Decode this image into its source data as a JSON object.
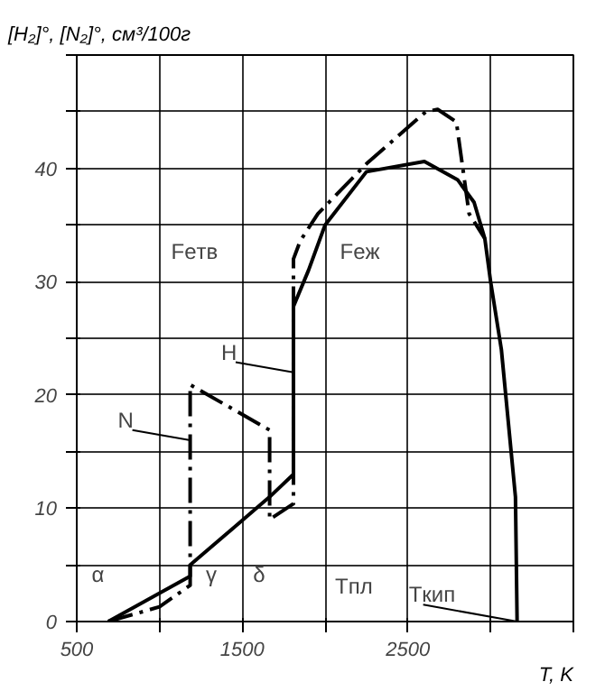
{
  "chart_data": {
    "type": "line",
    "xlabel": "T, K",
    "ylabel": "[H₂]°, [N₂]°, см³/100г",
    "xlim": [
      500,
      3500
    ],
    "ylim": [
      0,
      50
    ],
    "xticks": [
      500,
      {
        "value": 1000,
        "label": null
      },
      1500,
      {
        "value": 2000,
        "label": null
      },
      2500,
      {
        "value": 3000,
        "label": null
      },
      {
        "value": 3500,
        "label": null
      }
    ],
    "yticks": [
      0,
      {
        "value": 5,
        "label": null
      },
      10,
      {
        "value": 15,
        "label": null
      },
      20,
      {
        "value": 25,
        "label": null
      },
      30,
      {
        "value": 35,
        "label": null
      },
      40,
      {
        "value": 45,
        "label": null
      },
      {
        "value": 50,
        "label": null
      }
    ],
    "grid": true,
    "series": [
      {
        "color": "#000000",
        "line_style": "solid",
        "x": [
          690,
          1185,
          1185,
          1665,
          1809,
          1809,
          1900,
          2000,
          2250,
          2600,
          2800,
          2900,
          2965,
          3000,
          3065,
          3150,
          3160
        ],
        "values": [
          0,
          4,
          5,
          11,
          13,
          27.8,
          31,
          35,
          39.7,
          40.6,
          39,
          37,
          33.8,
          30,
          24,
          11,
          0
        ]
      },
      {
        "color": "#000000",
        "line_style": "dashed",
        "x": [
          690,
          1000,
          1185,
          1185,
          1665,
          1665,
          1809,
          1809,
          1850,
          1957,
          2250,
          2609,
          2680,
          2793,
          2870,
          2965
        ],
        "values": [
          0,
          1.3,
          3.2,
          20.9,
          16.9,
          9.0,
          10.4,
          32,
          33.6,
          36,
          40.4,
          45,
          45.2,
          44.1,
          36,
          33.8
        ]
      }
    ],
    "annotations": [
      "Feтв",
      "Feж",
      {
        "text": "H",
        "x": 1809,
        "y": 22
      },
      {
        "text": "N",
        "x": 1185,
        "y": 16
      },
      "α",
      "γ",
      "δ",
      "Tпл",
      {
        "text": "Tкип",
        "x": 3160,
        "y": 0
      }
    ]
  }
}
